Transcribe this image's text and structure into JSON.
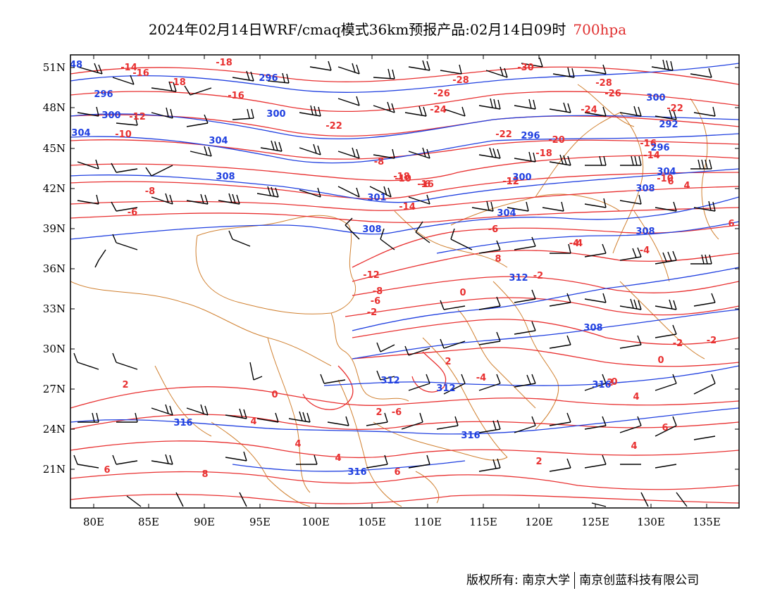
{
  "title": {
    "main": "2024年02月14日WRF/cmaq模式36km预报产品:02月14日09时",
    "level": "700hpa"
  },
  "axes": {
    "lat_labels": [
      "51N",
      "48N",
      "45N",
      "42N",
      "39N",
      "36N",
      "33N",
      "30N",
      "27N",
      "24N",
      "21N"
    ],
    "lon_labels": [
      "80E",
      "85E",
      "90E",
      "95E",
      "100E",
      "105E",
      "110E",
      "115E",
      "120E",
      "125E",
      "130E",
      "135E"
    ]
  },
  "colors": {
    "temperature_contour": "#e83030",
    "geopotential_contour": "#2040e0",
    "border": "#d08030",
    "wind_barb": "#000000"
  },
  "temperature_labels": [
    "-14",
    "-16",
    "-18",
    "-18",
    "-16",
    "-12",
    "-10",
    "-26",
    "-28",
    "-30",
    "-24",
    "-22",
    "-22",
    "-20",
    "-18",
    "-26",
    "-28",
    "-24",
    "-22",
    "-16",
    "-14",
    "-12",
    "-10",
    "-8",
    "-6",
    "-8",
    "-6",
    "-18",
    "-16",
    "-14",
    "-12",
    "-10",
    "-6",
    "-4",
    "-12",
    "-8",
    "-6",
    "-2",
    "-2",
    "0",
    "-2",
    "0",
    "2",
    "-4",
    "2",
    "-6",
    "4",
    "6",
    "-2",
    "0",
    "2",
    "4",
    "4",
    "0",
    "2",
    "4",
    "6",
    "2",
    "-4",
    "4",
    "6",
    "8",
    "8",
    "6",
    "4",
    "6",
    "-4",
    "-6"
  ],
  "height_labels": [
    "48",
    "296",
    "300",
    "304",
    "300",
    "296",
    "304",
    "308",
    "301",
    "308",
    "296",
    "300",
    "304",
    "308",
    "292",
    "296",
    "300",
    "304",
    "308",
    "312",
    "308",
    "312",
    "316",
    "312",
    "316",
    "316",
    "316"
  ],
  "copyright": {
    "left": "版权所有: 南京大学",
    "right": "南京创蓝科技有限公司"
  }
}
